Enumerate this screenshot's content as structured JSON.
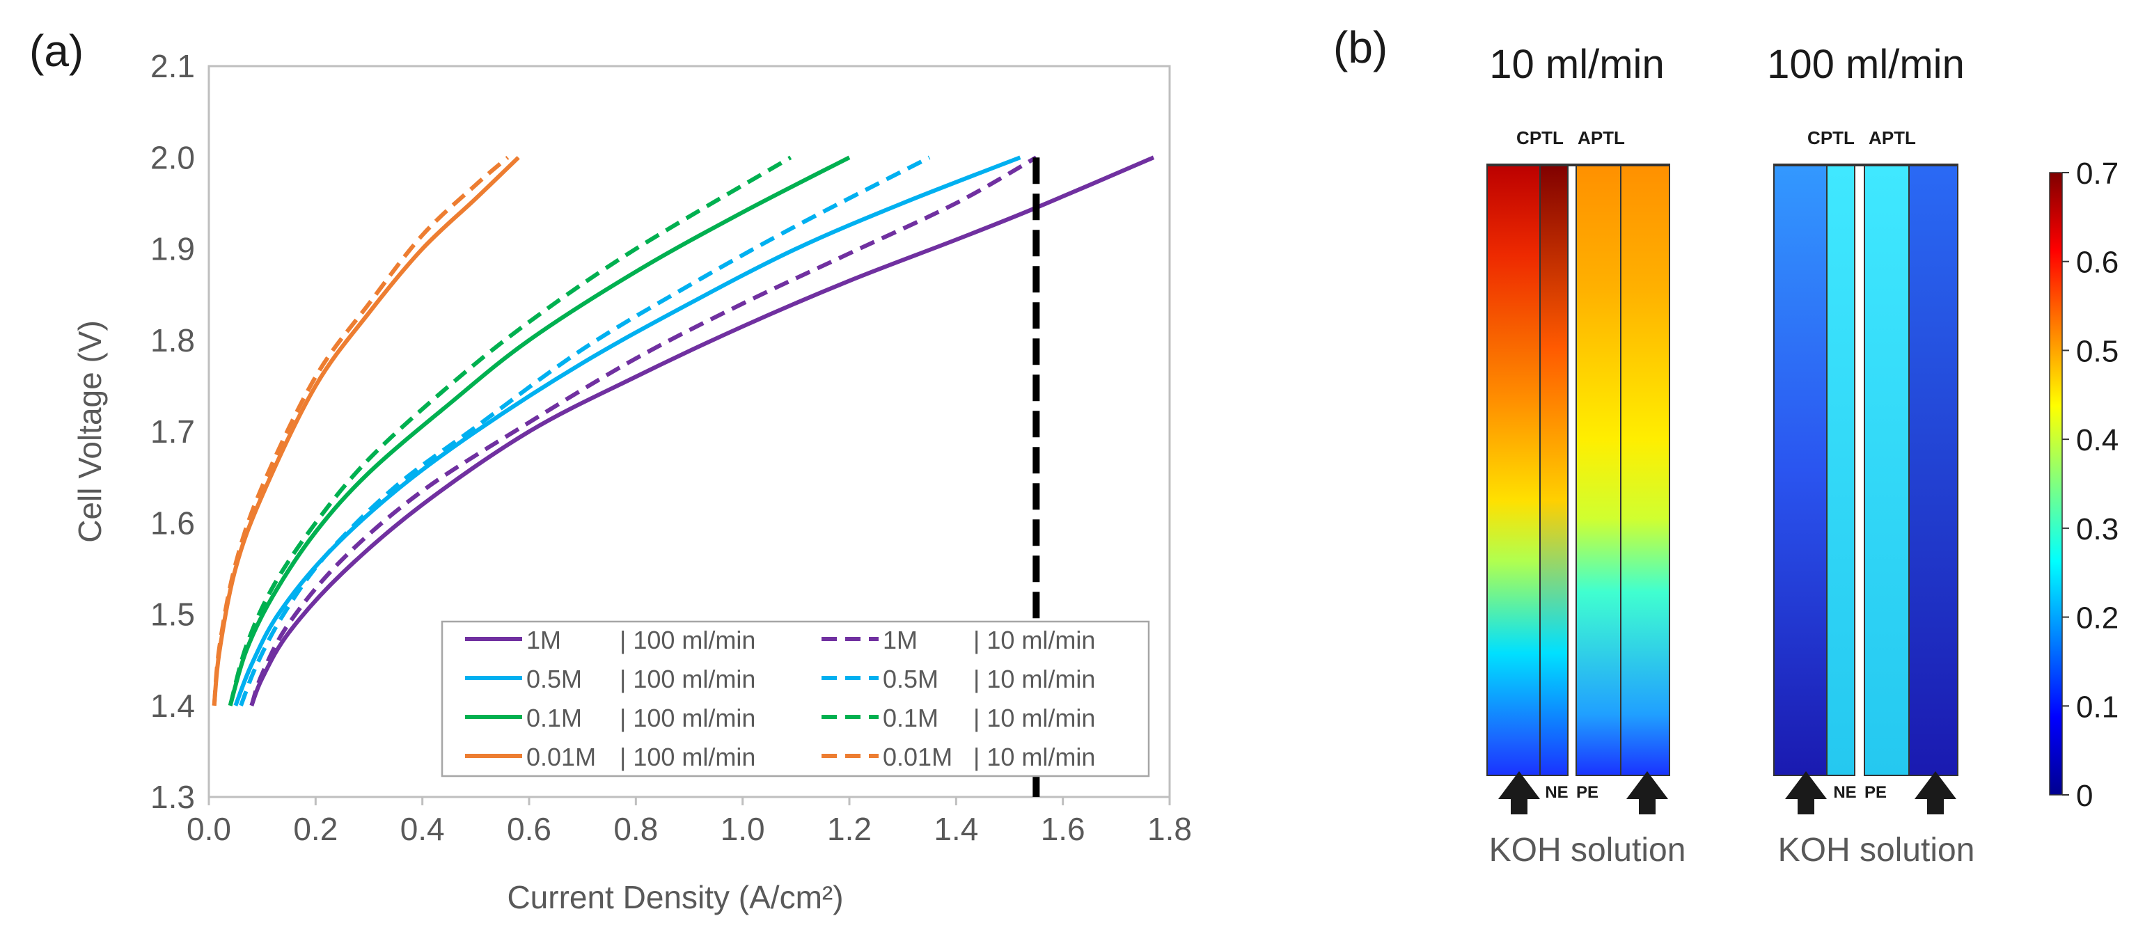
{
  "chart_data": [
    {
      "type": "line",
      "panel_label": "(a)",
      "xlabel": "Current Density (A/cm²)",
      "ylabel": "Cell Voltage (V)",
      "xlim": [
        0,
        1.8
      ],
      "ylim": [
        1.3,
        2.1
      ],
      "xticks": [
        0,
        0.2,
        0.4,
        0.6,
        0.8,
        1.0,
        1.2,
        1.4,
        1.6,
        1.8
      ],
      "xtick_labels": [
        "0.0",
        "0.2",
        "0.4",
        "0.6",
        "0.8",
        "1.0",
        "1.2",
        "1.4",
        "1.6",
        "1.8"
      ],
      "yticks": [
        1.3,
        1.4,
        1.5,
        1.6,
        1.7,
        1.8,
        1.9,
        2.0,
        2.1
      ],
      "ytick_labels": [
        "1.3",
        "1.4",
        "1.5",
        "1.6",
        "1.7",
        "1.8",
        "1.9",
        "2.0",
        "2.1"
      ],
      "grid": false,
      "legend_position": "bottom-right",
      "reference_line": {
        "x": 1.55,
        "style": "dashed",
        "color": "#000000"
      },
      "series": [
        {
          "name": "1M",
          "flow": "| 100 ml/min",
          "color": "#7030a0",
          "dash": false,
          "x": [
            0.08,
            0.1,
            0.15,
            0.25,
            0.4,
            0.6,
            0.8,
            1.0,
            1.2,
            1.4,
            1.55,
            1.77
          ],
          "y": [
            1.4,
            1.43,
            1.48,
            1.545,
            1.62,
            1.7,
            1.76,
            1.815,
            1.865,
            1.91,
            1.945,
            2.0
          ]
        },
        {
          "name": "0.5M",
          "flow": "| 100 ml/min",
          "color": "#00b0f0",
          "dash": false,
          "x": [
            0.05,
            0.08,
            0.13,
            0.22,
            0.35,
            0.5,
            0.7,
            0.9,
            1.1,
            1.3,
            1.52
          ],
          "y": [
            1.4,
            1.445,
            1.5,
            1.565,
            1.635,
            1.7,
            1.775,
            1.84,
            1.9,
            1.95,
            2.0
          ]
        },
        {
          "name": "0.1M",
          "flow": "| 100 ml/min",
          "color": "#00b050",
          "dash": false,
          "x": [
            0.04,
            0.07,
            0.12,
            0.2,
            0.3,
            0.45,
            0.6,
            0.8,
            1.0,
            1.2
          ],
          "y": [
            1.4,
            1.46,
            1.52,
            1.59,
            1.655,
            1.73,
            1.8,
            1.875,
            1.94,
            2.0
          ]
        },
        {
          "name": "0.01M",
          "flow": "| 100 ml/min",
          "color": "#ed7d31",
          "dash": false,
          "x": [
            0.01,
            0.02,
            0.05,
            0.1,
            0.2,
            0.3,
            0.4,
            0.5,
            0.58
          ],
          "y": [
            1.4,
            1.46,
            1.55,
            1.63,
            1.75,
            1.83,
            1.9,
            1.955,
            2.0
          ]
        },
        {
          "name": "1M",
          "flow": "| 10 ml/min",
          "color": "#7030a0",
          "dash": true,
          "x": [
            0.08,
            0.1,
            0.15,
            0.25,
            0.4,
            0.6,
            0.8,
            1.0,
            1.2,
            1.4,
            1.55
          ],
          "y": [
            1.4,
            1.435,
            1.49,
            1.56,
            1.635,
            1.71,
            1.78,
            1.84,
            1.895,
            1.95,
            2.0
          ]
        },
        {
          "name": "0.5M",
          "flow": "| 10 ml/min",
          "color": "#00b0f0",
          "dash": true,
          "x": [
            0.06,
            0.09,
            0.14,
            0.22,
            0.35,
            0.5,
            0.7,
            0.9,
            1.1,
            1.35
          ],
          "y": [
            1.4,
            1.445,
            1.5,
            1.565,
            1.64,
            1.705,
            1.79,
            1.86,
            1.925,
            2.0
          ]
        },
        {
          "name": "0.1M",
          "flow": "| 10 ml/min",
          "color": "#00b050",
          "dash": true,
          "x": [
            0.04,
            0.07,
            0.12,
            0.2,
            0.3,
            0.45,
            0.6,
            0.8,
            1.09
          ],
          "y": [
            1.4,
            1.465,
            1.53,
            1.6,
            1.67,
            1.75,
            1.82,
            1.9,
            2.0
          ]
        },
        {
          "name": "0.01M",
          "flow": "| 10 ml/min",
          "color": "#ed7d31",
          "dash": true,
          "x": [
            0.01,
            0.02,
            0.05,
            0.1,
            0.2,
            0.3,
            0.4,
            0.5,
            0.56
          ],
          "y": [
            1.4,
            1.465,
            1.555,
            1.64,
            1.76,
            1.84,
            1.915,
            1.97,
            2.0
          ]
        }
      ]
    },
    {
      "type": "heatmap",
      "panel_label": "(b)",
      "panels": [
        {
          "title": "10 ml/min",
          "layer_label_left": "CPTL",
          "layer_label_right": "APTL",
          "ne_label": "NE",
          "pe_label": "PE",
          "caption": "KOH solution"
        },
        {
          "title": "100 ml/min",
          "layer_label_left": "CPTL",
          "layer_label_right": "APTL",
          "ne_label": "NE",
          "pe_label": "PE",
          "caption": "KOH solution"
        }
      ],
      "colorbar": {
        "min": 0,
        "max": 0.7,
        "ticks": [
          0,
          0.1,
          0.2,
          0.3,
          0.4,
          0.5,
          0.6,
          0.7
        ],
        "tick_labels": [
          "0",
          "0.1",
          "0.2",
          "0.3",
          "0.4",
          "0.5",
          "0.6",
          "0.7"
        ],
        "colors": [
          "#00008f",
          "#0000ff",
          "#0080ff",
          "#00ffff",
          "#80ff80",
          "#ffff00",
          "#ff8000",
          "#ff0000",
          "#800000"
        ]
      }
    }
  ]
}
